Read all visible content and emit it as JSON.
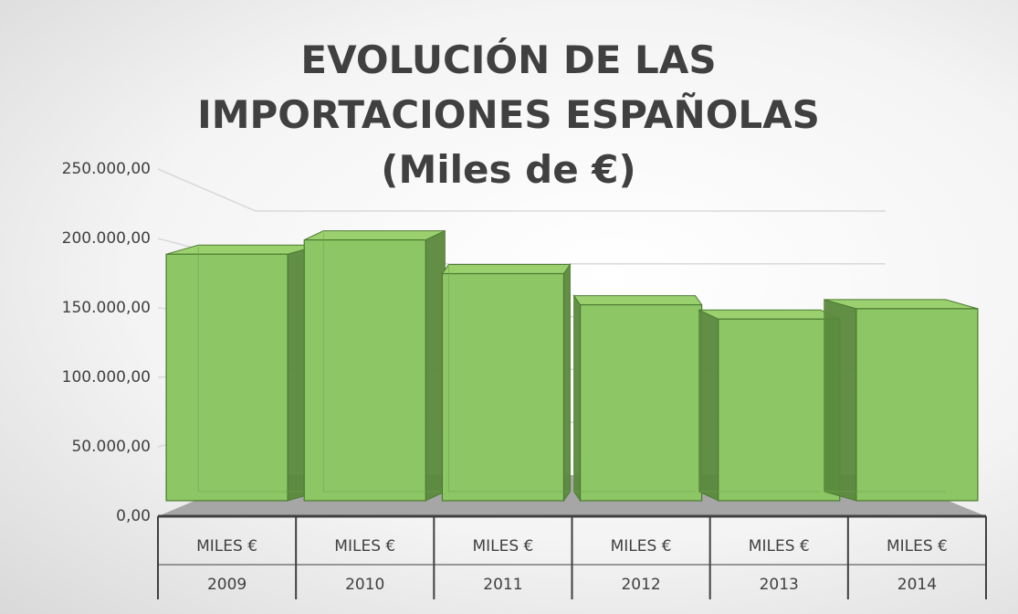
{
  "chart_data": {
    "type": "bar3d",
    "title": "EVOLUCIÓN DE LAS IMPORTACIONES ESPAÑOLAS (Miles de €)",
    "categories": [
      [
        "MILES €",
        "2009"
      ],
      [
        "MILES €",
        "2010"
      ],
      [
        "MILES €",
        "2011"
      ],
      [
        "MILES €",
        "2012"
      ],
      [
        "MILES €",
        "2013"
      ],
      [
        "MILES €",
        "2014"
      ]
    ],
    "values": [
      190000,
      201000,
      175000,
      151000,
      140000,
      148000
    ],
    "color": "#8cc665",
    "ylim": [
      0,
      250000
    ],
    "yticks": [
      {
        "value": 0,
        "label": "0,00"
      },
      {
        "value": 50000,
        "label": "50.000,00"
      },
      {
        "value": 100000,
        "label": "100.000,00"
      },
      {
        "value": 150000,
        "label": "150.000,00"
      },
      {
        "value": 200000,
        "label": "200.000,00"
      },
      {
        "value": 250000,
        "label": "250.000,00"
      }
    ],
    "grid": true
  }
}
